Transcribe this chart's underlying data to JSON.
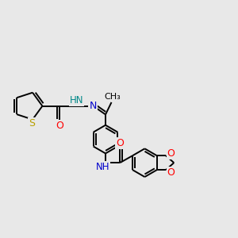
{
  "bg_color": "#e8e8e8",
  "bond_color": "#000000",
  "bond_width": 1.4,
  "atom_colors": {
    "S": "#b8a000",
    "O": "#ff0000",
    "N": "#0000cc",
    "NH": "#008888",
    "C": "#000000"
  },
  "font_size": 8.5,
  "fig_width": 3.0,
  "fig_height": 3.0,
  "dpi": 100,
  "xlim": [
    0,
    10
  ],
  "ylim": [
    0,
    10
  ]
}
